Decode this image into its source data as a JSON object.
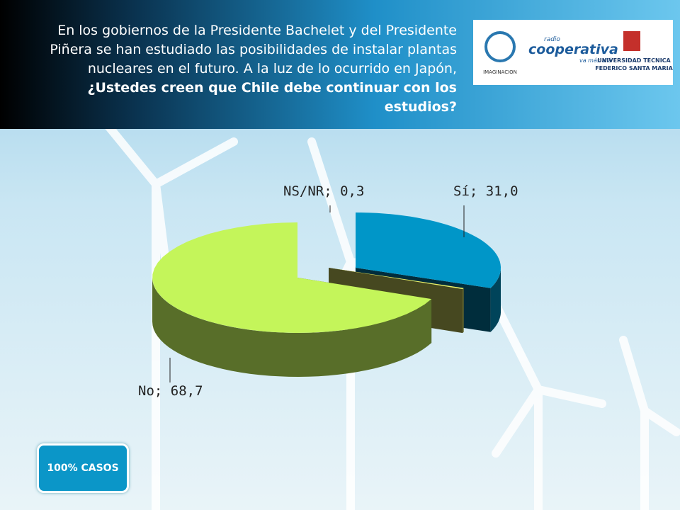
{
  "header": {
    "text": "En los gobiernos de la Presidente Bachelet y del Presidente Piñera se han estudiado las posibilidades de instalar plantas nucleares en el futuro. A la luz de lo ocurrido en Japón,",
    "question": "¿Ustedes creen que Chile debe continuar con los estudios?"
  },
  "logos": {
    "imaginacion": "IMAGINACION",
    "radio": "radio",
    "cooperativa": "cooperativa",
    "slogan": "va más allá",
    "university_1": "UNIVERSIDAD TECNICA",
    "university_2": "FEDERICO SANTA MARIA"
  },
  "chart_data": {
    "type": "pie3d",
    "values": [
      31.0,
      0.3,
      68.7
    ],
    "value_labels": [
      "Sí; 31,0",
      "NS/NR; 0,3",
      "No; 68,7"
    ],
    "colors": [
      "#0096c8",
      "#e8f06a",
      "#c4f55a"
    ]
  },
  "badge": "100% CASOS"
}
